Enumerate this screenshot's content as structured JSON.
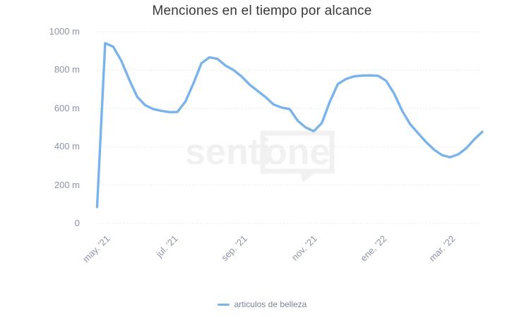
{
  "title": "Menciones en el tiempo por alcance",
  "watermark": {
    "prefix": "senti",
    "boxed": "one"
  },
  "colors": {
    "series": "#79b3eb",
    "grid": "#d7d7d7",
    "axis_label": "#8b93a6",
    "title_text": "#383838",
    "legend_label": "#7b8494",
    "watermark": "#f1f1f1"
  },
  "chart_data": {
    "type": "line",
    "title": "Menciones en el tiempo por alcance",
    "xlabel": "",
    "ylabel": "",
    "value_suffix": "m",
    "ylim": [
      0,
      1000
    ],
    "grid": "horizontal-dotted",
    "legend_position": "bottom-center",
    "x_range": "late Apr 2021 to late Mar 2022",
    "x_sampling": "weekly (values estimated from curve)",
    "yticks": [
      {
        "value": 1000,
        "label": "1000 m"
      },
      {
        "value": 800,
        "label": "800 m"
      },
      {
        "value": 600,
        "label": "600 m"
      },
      {
        "value": 400,
        "label": "400 m"
      },
      {
        "value": 200,
        "label": "200 m"
      },
      {
        "value": 0,
        "label": "0"
      }
    ],
    "xticks": [
      {
        "label": "may. '21",
        "pos": 0.018
      },
      {
        "label": "jul. '21",
        "pos": 0.196
      },
      {
        "label": "sep. '21",
        "pos": 0.376
      },
      {
        "label": "nov. '21",
        "pos": 0.556
      },
      {
        "label": "ene. '22",
        "pos": 0.738
      },
      {
        "label": "mar. '22",
        "pos": 0.916
      }
    ],
    "series": [
      {
        "name": "articulos de belleza",
        "color": "#79b3eb",
        "values": [
          85,
          940,
          922,
          850,
          750,
          660,
          616,
          596,
          587,
          580,
          581,
          635,
          730,
          835,
          866,
          858,
          823,
          800,
          766,
          724,
          691,
          658,
          620,
          604,
          596,
          535,
          500,
          481,
          523,
          635,
          727,
          753,
          767,
          771,
          772,
          770,
          744,
          678,
          588,
          518,
          470,
          424,
          384,
          355,
          345,
          360,
          392,
          438,
          478
        ]
      }
    ]
  }
}
